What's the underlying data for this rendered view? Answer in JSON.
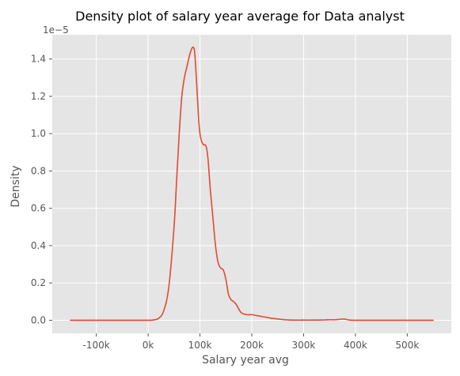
{
  "chart_data": {
    "type": "line",
    "title": "Density plot of salary year average for Data analyst",
    "xlabel": "Salary year avg",
    "ylabel": "Density",
    "y_scale_label": "1e−5",
    "xlim": [
      -185000,
      585000
    ],
    "ylim": [
      -0.07,
      1.53
    ],
    "x_ticks": [
      -100000,
      0,
      100000,
      200000,
      300000,
      400000,
      500000
    ],
    "x_tick_labels": [
      "-100k",
      "0k",
      "100k",
      "200k",
      "300k",
      "400k",
      "500k"
    ],
    "y_ticks": [
      0.0,
      0.2,
      0.4,
      0.6,
      0.8,
      1.0,
      1.2,
      1.4
    ],
    "y_tick_labels": [
      "0.0",
      "0.2",
      "0.4",
      "0.6",
      "0.8",
      "1.0",
      "1.2",
      "1.4"
    ],
    "grid": true,
    "series": [
      {
        "color": "#e24a33",
        "x": [
          -150000,
          -100000,
          -50000,
          0,
          10000,
          20000,
          30000,
          40000,
          50000,
          55000,
          60000,
          65000,
          70000,
          75000,
          80000,
          85000,
          88000,
          90000,
          93000,
          97000,
          100000,
          103000,
          107000,
          110000,
          113000,
          116000,
          120000,
          125000,
          130000,
          135000,
          140000,
          145000,
          150000,
          155000,
          160000,
          165000,
          170000,
          175000,
          180000,
          190000,
          200000,
          210000,
          220000,
          230000,
          240000,
          250000,
          260000,
          270000,
          280000,
          300000,
          320000,
          340000,
          350000,
          360000,
          370000,
          375000,
          380000,
          385000,
          390000,
          400000,
          450000,
          500000,
          550000
        ],
        "y": [
          0,
          0,
          0,
          0,
          0.002,
          0.01,
          0.05,
          0.18,
          0.5,
          0.75,
          1.0,
          1.2,
          1.3,
          1.36,
          1.42,
          1.46,
          1.46,
          1.43,
          1.3,
          1.1,
          1.0,
          0.96,
          0.94,
          0.94,
          0.92,
          0.85,
          0.7,
          0.55,
          0.4,
          0.31,
          0.28,
          0.27,
          0.22,
          0.14,
          0.11,
          0.1,
          0.085,
          0.06,
          0.04,
          0.03,
          0.03,
          0.025,
          0.02,
          0.015,
          0.01,
          0.007,
          0.004,
          0.002,
          0.001,
          0.001,
          0.001,
          0.002,
          0.003,
          0.003,
          0.005,
          0.007,
          0.006,
          0.003,
          0.001,
          0,
          0,
          0,
          0
        ]
      }
    ]
  }
}
